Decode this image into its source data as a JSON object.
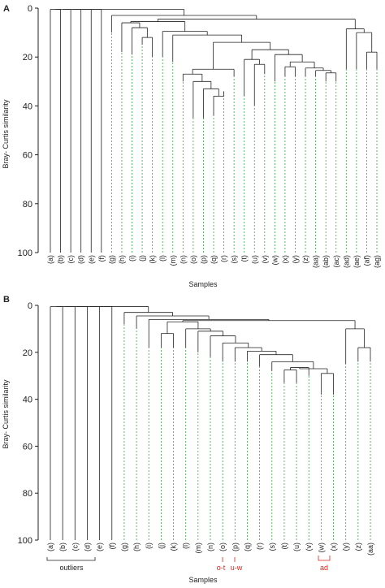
{
  "figure": {
    "y_axis_title": "Bray- Curtis similarity",
    "x_axis_title": "Samples",
    "y_ticks": [
      0,
      20,
      40,
      60,
      80,
      100
    ]
  },
  "panels": [
    {
      "label": "A",
      "leaves": [
        "(a)",
        "(b)",
        "(c)",
        "(d)",
        "(e)",
        "(f)",
        "(g)",
        "(h)",
        "(i)",
        "(j)",
        "(k)",
        "(l)",
        "(m)",
        "(n)",
        "(o)",
        "(p)",
        "(q)",
        "(r)",
        "(s)",
        "(t)",
        "(u)",
        "(v)",
        "(w)",
        "(x)",
        "(y)",
        "(z)",
        "(aa)",
        "(ab)",
        "(ac)",
        "(ad)",
        "(ae)",
        "(af)",
        "(ag)"
      ]
    },
    {
      "label": "B",
      "leaves": [
        "(a)",
        "(b)",
        "(c)",
        "(d)",
        "(e)",
        "(f)",
        "(g)",
        "(h)",
        "(i)",
        "(j)",
        "(k)",
        "(l)",
        "(m)",
        "(n)",
        "(o)",
        "(p)",
        "(q)",
        "(r)",
        "(s)",
        "(t)",
        "(u)",
        "(v)",
        "(w)",
        "(x)",
        "(y)",
        "(z)",
        "(aa)"
      ],
      "annotations": {
        "outliers": "outliers",
        "o_t": "o-t",
        "u_w": "u-w",
        "ad": "ad"
      }
    }
  ],
  "chart_data": [
    {
      "type": "dendrogram",
      "ylabel": "Bray- Curtis similarity",
      "xlabel": "Samples",
      "ylim": [
        0,
        100
      ],
      "leaves": [
        "(a)",
        "(b)",
        "(c)",
        "(d)",
        "(e)",
        "(f)",
        "(g)",
        "(h)",
        "(i)",
        "(j)",
        "(k)",
        "(l)",
        "(m)",
        "(n)",
        "(o)",
        "(p)",
        "(q)",
        "(r)",
        "(s)",
        "(t)",
        "(u)",
        "(v)",
        "(w)",
        "(x)",
        "(y)",
        "(z)",
        "(aa)",
        "(ab)",
        "(ac)",
        "(ad)",
        "(ae)",
        "(af)",
        "(ag)"
      ],
      "tree": [
        [
          [
            [
              [
                [
                  [
                    "(a)",
                    "(b)"
                  ],
                  "(c)"
                ],
                "(d)"
              ],
              "(e)"
            ],
            "(f)"
          ],
          "(g)"
        ],
        [
          [
            [
              "(h)",
              [
                "(i)",
                [
                  "(j)",
                  "(k)"
                ]
              ]
            ],
            [
              "(l)",
              [
                "(m)",
                [
                  [
                    [
                      "(n)",
                      [
                        "(o)",
                        [
                          "(p)",
                          [
                            "(q)",
                            "(r)"
                          ]
                        ]
                      ]
                    ],
                    "(s)"
                  ],
                  [
                    [
                      "(t)",
                      [
                        "(u)",
                        "(v)"
                      ]
                    ],
                    [
                      "(w)",
                      [
                        [
                          "(x)",
                          "(y)"
                        ],
                        [
                          "(z)",
                          [
                            "(aa)",
                            [
                              "(ab)",
                              "(ac)"
                            ]
                          ]
                        ]
                      ]
                    ]
                  ]
                ]
              ]
            ]
          ],
          [
            "(ad)",
            [
              "(ae)",
              [
                "(af)",
                "(ag)"
              ]
            ]
          ]
        ]
      ],
      "heights": [
        0.5,
        0.5,
        0.5,
        0.5,
        0.5,
        2.5,
        4,
        6,
        8,
        10,
        12,
        19,
        10,
        11,
        27,
        30,
        32,
        34,
        36,
        44,
        26,
        21,
        22,
        23,
        24,
        25,
        26,
        26.5,
        27,
        24,
        15,
        20,
        18
      ]
    },
    {
      "type": "dendrogram",
      "ylabel": "Bray- Curtis similarity",
      "xlabel": "Samples",
      "ylim": [
        0,
        100
      ],
      "leaves": [
        "(a)",
        "(b)",
        "(c)",
        "(d)",
        "(e)",
        "(f)",
        "(g)",
        "(h)",
        "(i)",
        "(j)",
        "(k)",
        "(l)",
        "(m)",
        "(n)",
        "(o)",
        "(p)",
        "(q)",
        "(r)",
        "(s)",
        "(t)",
        "(u)",
        "(v)",
        "(w)",
        "(x)",
        "(y)",
        "(z)",
        "(aa)"
      ],
      "heights": [
        0.5,
        0.5,
        0.5,
        0.5,
        0.5,
        0.5,
        3,
        5,
        7,
        12,
        14,
        10,
        11,
        13,
        16,
        18,
        20,
        22,
        24,
        27,
        28,
        26,
        27,
        29,
        10,
        18,
        18
      ]
    }
  ]
}
